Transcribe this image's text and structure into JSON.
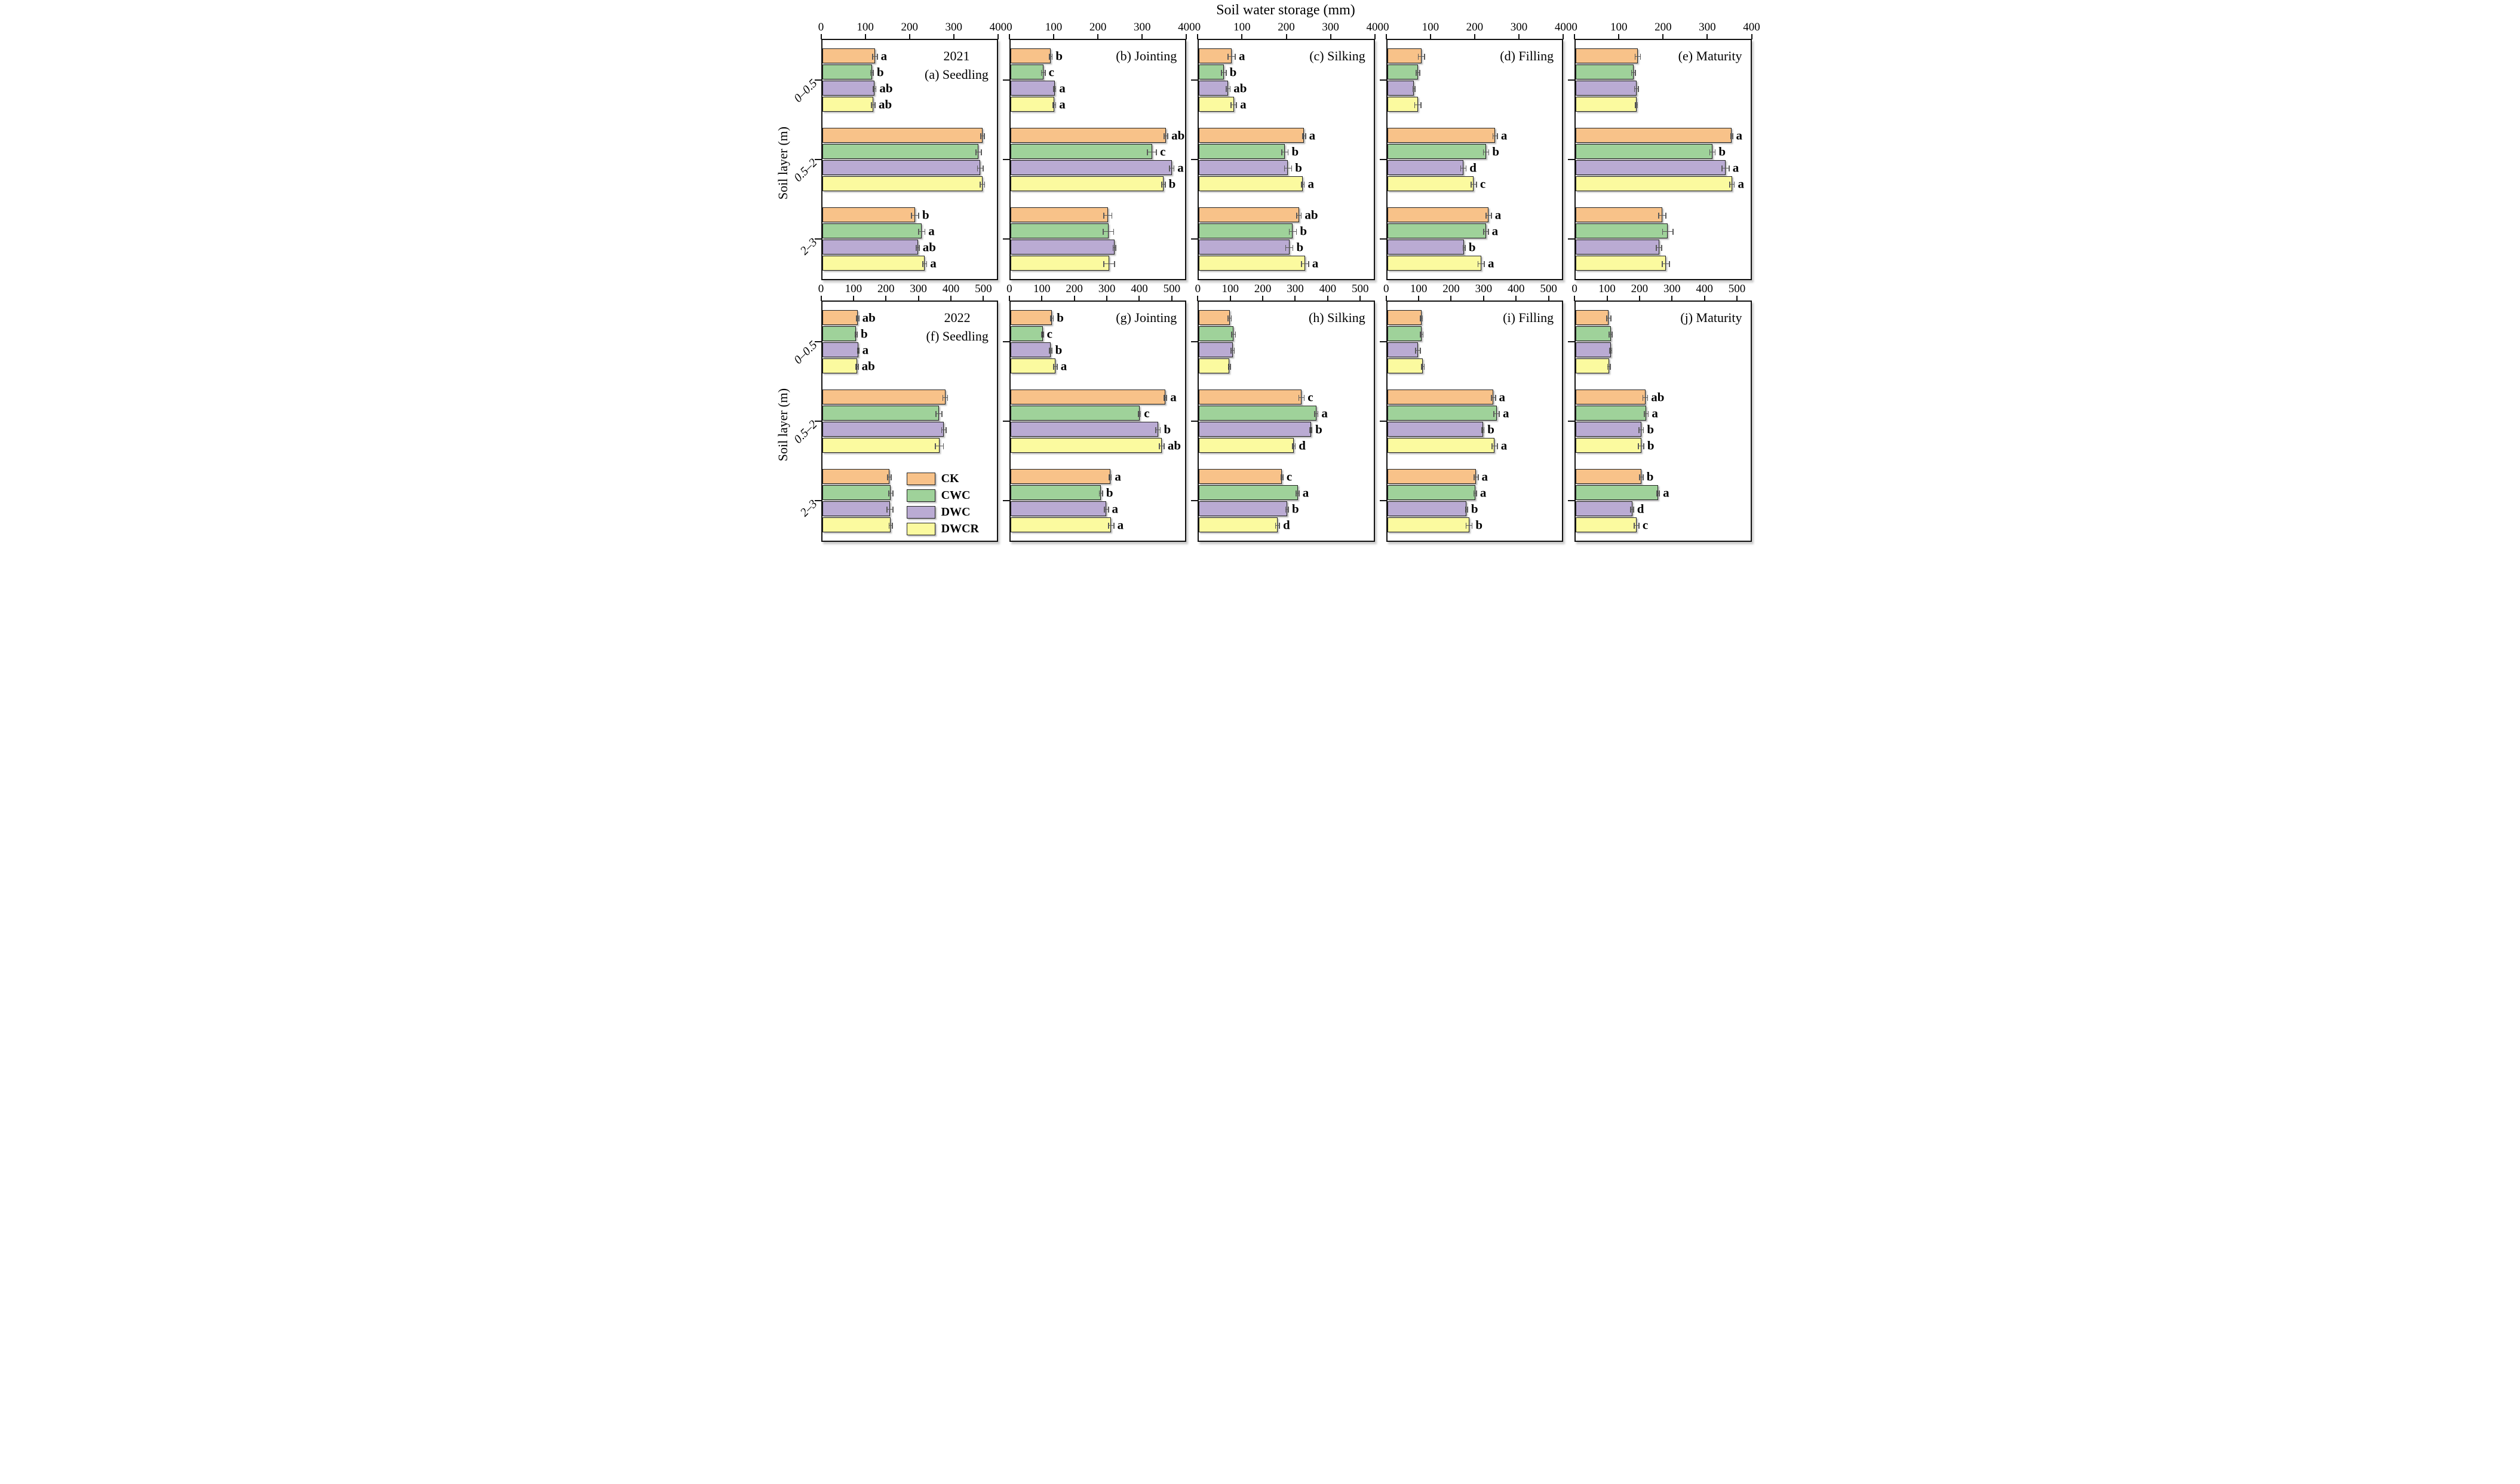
{
  "chart_data": {
    "type": "bar",
    "orientation": "horizontal",
    "title": "Soil water storage (mm)",
    "ylabel": "Soil layer (m)",
    "xlabel": "Soil water storage (mm)",
    "grid": false,
    "layers": [
      "0–0.5",
      "0.5–2",
      "2–3"
    ],
    "treatments": [
      {
        "name": "CK",
        "color": "#F8C289"
      },
      {
        "name": "CWC",
        "color": "#9FD29A"
      },
      {
        "name": "DWC",
        "color": "#BAABD3"
      },
      {
        "name": "DWCR",
        "color": "#FBFA9F"
      }
    ],
    "legend": {
      "position": "inside panel (f), bottom right",
      "items": [
        "CK",
        "CWC",
        "DWC",
        "DWCR"
      ]
    },
    "rows": [
      {
        "year": "2021",
        "ticks": [
          0,
          100,
          200,
          300,
          400
        ],
        "axis_max": 400,
        "panels": [
          {
            "id": "a",
            "tag": "(a) Seedling",
            "year_label": "2021",
            "groups": [
              [
                {
                  "v": 121,
                  "e": 5,
                  "l": "a"
                },
                {
                  "v": 114,
                  "e": 3,
                  "l": "b"
                },
                {
                  "v": 120,
                  "e": 3,
                  "l": "ab"
                },
                {
                  "v": 117,
                  "e": 4,
                  "l": "ab"
                }
              ],
              [
                {
                  "v": 367,
                  "e": 4,
                  "l": ""
                },
                {
                  "v": 358,
                  "e": 6,
                  "l": ""
                },
                {
                  "v": 362,
                  "e": 6,
                  "l": ""
                },
                {
                  "v": 367,
                  "e": 5,
                  "l": ""
                }
              ],
              [
                {
                  "v": 213,
                  "e": 8,
                  "l": "b"
                },
                {
                  "v": 228,
                  "e": 7,
                  "l": "a"
                },
                {
                  "v": 219,
                  "e": 3,
                  "l": "ab"
                },
                {
                  "v": 235,
                  "e": 4,
                  "l": "a"
                }
              ]
            ]
          },
          {
            "id": "b",
            "tag": "(b) Jointing",
            "year_label": "",
            "groups": [
              [
                {
                  "v": 92,
                  "e": 3,
                  "l": "b"
                },
                {
                  "v": 75,
                  "e": 4,
                  "l": "c"
                },
                {
                  "v": 101,
                  "e": 2,
                  "l": "a"
                },
                {
                  "v": 100,
                  "e": 3,
                  "l": "a"
                }
              ],
              [
                {
                  "v": 356,
                  "e": 4,
                  "l": "ab"
                },
                {
                  "v": 324,
                  "e": 10,
                  "l": "c"
                },
                {
                  "v": 369,
                  "e": 5,
                  "l": "a"
                },
                {
                  "v": 350,
                  "e": 4,
                  "l": "b"
                }
              ],
              [
                {
                  "v": 223,
                  "e": 9,
                  "l": ""
                },
                {
                  "v": 224,
                  "e": 12,
                  "l": ""
                },
                {
                  "v": 238,
                  "e": 3,
                  "l": ""
                },
                {
                  "v": 226,
                  "e": 12,
                  "l": ""
                }
              ]
            ]
          },
          {
            "id": "c",
            "tag": "(c) Silking",
            "year_label": "",
            "groups": [
              [
                {
                  "v": 75,
                  "e": 8,
                  "l": "a"
                },
                {
                  "v": 57,
                  "e": 5,
                  "l": "b"
                },
                {
                  "v": 67,
                  "e": 4,
                  "l": "ab"
                },
                {
                  "v": 80,
                  "e": 6,
                  "l": "a"
                }
              ],
              [
                {
                  "v": 241,
                  "e": 3,
                  "l": "a"
                },
                {
                  "v": 197,
                  "e": 7,
                  "l": "b"
                },
                {
                  "v": 204,
                  "e": 8,
                  "l": "b"
                },
                {
                  "v": 238,
                  "e": 3,
                  "l": "a"
                }
              ],
              [
                {
                  "v": 229,
                  "e": 5,
                  "l": "ab"
                },
                {
                  "v": 215,
                  "e": 8,
                  "l": "b"
                },
                {
                  "v": 207,
                  "e": 8,
                  "l": "b"
                },
                {
                  "v": 243,
                  "e": 8,
                  "l": "a"
                }
              ]
            ]
          },
          {
            "id": "d",
            "tag": "(d) Filling",
            "year_label": "",
            "groups": [
              [
                {
                  "v": 78,
                  "e": 7,
                  "l": ""
                },
                {
                  "v": 70,
                  "e": 4,
                  "l": ""
                },
                {
                  "v": 61,
                  "e": 2,
                  "l": ""
                },
                {
                  "v": 70,
                  "e": 7,
                  "l": ""
                }
              ],
              [
                {
                  "v": 247,
                  "e": 5,
                  "l": "a"
                },
                {
                  "v": 226,
                  "e": 6,
                  "l": "b"
                },
                {
                  "v": 174,
                  "e": 6,
                  "l": "d"
                },
                {
                  "v": 198,
                  "e": 6,
                  "l": "c"
                }
              ],
              [
                {
                  "v": 232,
                  "e": 6,
                  "l": "a"
                },
                {
                  "v": 226,
                  "e": 5,
                  "l": "a"
                },
                {
                  "v": 176,
                  "e": 2,
                  "l": "b"
                },
                {
                  "v": 215,
                  "e": 7,
                  "l": "a"
                }
              ]
            ]
          },
          {
            "id": "e",
            "tag": "(e) Maturity",
            "year_label": "",
            "groups": [
              [
                {
                  "v": 142,
                  "e": 6,
                  "l": ""
                },
                {
                  "v": 132,
                  "e": 4,
                  "l": ""
                },
                {
                  "v": 139,
                  "e": 4,
                  "l": ""
                },
                {
                  "v": 139,
                  "e": 2,
                  "l": ""
                }
              ],
              [
                {
                  "v": 357,
                  "e": 2,
                  "l": "a"
                },
                {
                  "v": 313,
                  "e": 6,
                  "l": "b"
                },
                {
                  "v": 343,
                  "e": 8,
                  "l": "a"
                },
                {
                  "v": 358,
                  "e": 5,
                  "l": "a"
                }
              ],
              [
                {
                  "v": 198,
                  "e": 8,
                  "l": ""
                },
                {
                  "v": 211,
                  "e": 12,
                  "l": ""
                },
                {
                  "v": 191,
                  "e": 6,
                  "l": ""
                },
                {
                  "v": 206,
                  "e": 8,
                  "l": ""
                }
              ]
            ]
          }
        ]
      },
      {
        "year": "2022",
        "ticks": [
          0,
          100,
          200,
          300,
          400,
          500
        ],
        "axis_max": 545,
        "panels": [
          {
            "id": "f",
            "tag": "(f) Seedling",
            "year_label": "2022",
            "groups": [
              [
                {
                  "v": 111,
                  "e": 3,
                  "l": "ab"
                },
                {
                  "v": 106,
                  "e": 3,
                  "l": "b"
                },
                {
                  "v": 112,
                  "e": 2,
                  "l": "a"
                },
                {
                  "v": 109,
                  "e": 3,
                  "l": "ab"
                }
              ],
              [
                {
                  "v": 384,
                  "e": 7,
                  "l": ""
                },
                {
                  "v": 364,
                  "e": 9,
                  "l": ""
                },
                {
                  "v": 380,
                  "e": 7,
                  "l": ""
                },
                {
                  "v": 366,
                  "e": 12,
                  "l": ""
                }
              ],
              [
                {
                  "v": 210,
                  "e": 5,
                  "l": ""
                },
                {
                  "v": 214,
                  "e": 6,
                  "l": ""
                },
                {
                  "v": 211,
                  "e": 9,
                  "l": ""
                },
                {
                  "v": 214,
                  "e": 5,
                  "l": ""
                }
              ]
            ]
          },
          {
            "id": "g",
            "tag": "(g) Jointing",
            "year_label": "",
            "groups": [
              [
                {
                  "v": 129,
                  "e": 4,
                  "l": "b"
                },
                {
                  "v": 100,
                  "e": 2,
                  "l": "c"
                },
                {
                  "v": 125,
                  "e": 3,
                  "l": "b"
                },
                {
                  "v": 140,
                  "e": 5,
                  "l": "a"
                }
              ],
              [
                {
                  "v": 483,
                  "e": 4,
                  "l": "a"
                },
                {
                  "v": 402,
                  "e": 3,
                  "l": "c"
                },
                {
                  "v": 460,
                  "e": 7,
                  "l": "b"
                },
                {
                  "v": 472,
                  "e": 7,
                  "l": "ab"
                }
              ],
              [
                {
                  "v": 311,
                  "e": 3,
                  "l": "a"
                },
                {
                  "v": 282,
                  "e": 5,
                  "l": "b"
                },
                {
                  "v": 299,
                  "e": 6,
                  "l": "a"
                },
                {
                  "v": 314,
                  "e": 8,
                  "l": "a"
                }
              ]
            ]
          },
          {
            "id": "h",
            "tag": "(h) Silking",
            "year_label": "",
            "groups": [
              [
                {
                  "v": 96,
                  "e": 5,
                  "l": ""
                },
                {
                  "v": 108,
                  "e": 6,
                  "l": ""
                },
                {
                  "v": 105,
                  "e": 5,
                  "l": ""
                },
                {
                  "v": 95,
                  "e": 3,
                  "l": ""
                }
              ],
              [
                {
                  "v": 320,
                  "e": 8,
                  "l": "c"
                },
                {
                  "v": 366,
                  "e": 5,
                  "l": "a"
                },
                {
                  "v": 349,
                  "e": 3,
                  "l": "b"
                },
                {
                  "v": 296,
                  "e": 4,
                  "l": "d"
                }
              ],
              [
                {
                  "v": 259,
                  "e": 3,
                  "l": "c"
                },
                {
                  "v": 308,
                  "e": 4,
                  "l": "a"
                },
                {
                  "v": 275,
                  "e": 4,
                  "l": "b"
                },
                {
                  "v": 245,
                  "e": 6,
                  "l": "d"
                }
              ]
            ]
          },
          {
            "id": "i",
            "tag": "(i) Filling",
            "year_label": "",
            "groups": [
              [
                {
                  "v": 106,
                  "e": 3,
                  "l": ""
                },
                {
                  "v": 107,
                  "e": 4,
                  "l": ""
                },
                {
                  "v": 96,
                  "e": 7,
                  "l": ""
                },
                {
                  "v": 111,
                  "e": 4,
                  "l": ""
                }
              ],
              [
                {
                  "v": 331,
                  "e": 6,
                  "l": "a"
                },
                {
                  "v": 341,
                  "e": 8,
                  "l": "a"
                },
                {
                  "v": 298,
                  "e": 3,
                  "l": "b"
                },
                {
                  "v": 335,
                  "e": 8,
                  "l": "a"
                }
              ],
              [
                {
                  "v": 277,
                  "e": 6,
                  "l": "a"
                },
                {
                  "v": 274,
                  "e": 4,
                  "l": "a"
                },
                {
                  "v": 247,
                  "e": 3,
                  "l": "b"
                },
                {
                  "v": 255,
                  "e": 9,
                  "l": "b"
                }
              ]
            ]
          },
          {
            "id": "j",
            "tag": "(j) Maturity",
            "year_label": "",
            "groups": [
              [
                {
                  "v": 103,
                  "e": 6,
                  "l": ""
                },
                {
                  "v": 109,
                  "e": 4,
                  "l": ""
                },
                {
                  "v": 109,
                  "e": 3,
                  "l": ""
                },
                {
                  "v": 104,
                  "e": 4,
                  "l": ""
                }
              ],
              [
                {
                  "v": 217,
                  "e": 7,
                  "l": "ab"
                },
                {
                  "v": 220,
                  "e": 6,
                  "l": "a"
                },
                {
                  "v": 204,
                  "e": 7,
                  "l": "b"
                },
                {
                  "v": 204,
                  "e": 8,
                  "l": "b"
                }
              ],
              [
                {
                  "v": 205,
                  "e": 5,
                  "l": "b"
                },
                {
                  "v": 257,
                  "e": 4,
                  "l": "a"
                },
                {
                  "v": 176,
                  "e": 4,
                  "l": "d"
                },
                {
                  "v": 190,
                  "e": 7,
                  "l": "c"
                }
              ]
            ]
          }
        ]
      }
    ]
  }
}
